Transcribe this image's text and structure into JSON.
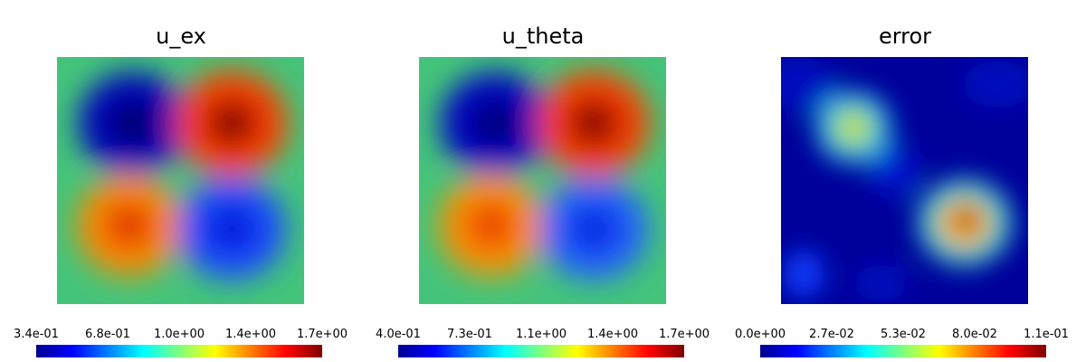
{
  "panels": [
    {
      "title": "u_ex",
      "colorbar_ticks": [
        "3.4e-01",
        "6.8e-01",
        "1.0e+00",
        "1.4e+00",
        "1.7e+00"
      ],
      "colormap": "jet"
    },
    {
      "title": "u_theta",
      "colorbar_ticks": [
        "4.0e-01",
        "7.3e-01",
        "1.1e+00",
        "1.4e+00",
        "1.7e+00"
      ],
      "colormap": "jet"
    },
    {
      "title": "error",
      "colorbar_ticks": [
        "0.0e+00",
        "2.7e-02",
        "5.3e-02",
        "8.0e-02",
        "1.1e-01"
      ],
      "colormap": "jet"
    }
  ],
  "chart_data": [
    {
      "type": "heatmap",
      "title": "u_ex",
      "colormap": "jet",
      "value_range": [
        0.34,
        1.7
      ],
      "blobs": [
        {
          "quadrant": "top-left",
          "kind": "minimum",
          "value": 0.34
        },
        {
          "quadrant": "top-right",
          "kind": "maximum",
          "value": 1.7
        },
        {
          "quadrant": "bottom-left",
          "kind": "maximum",
          "value": 1.55
        },
        {
          "quadrant": "bottom-right",
          "kind": "minimum",
          "value": 0.5
        }
      ]
    },
    {
      "type": "heatmap",
      "title": "u_theta",
      "colormap": "jet",
      "value_range": [
        0.4,
        1.7
      ],
      "blobs": [
        {
          "quadrant": "top-left",
          "kind": "minimum",
          "value": 0.4
        },
        {
          "quadrant": "top-right",
          "kind": "maximum",
          "value": 1.7
        },
        {
          "quadrant": "bottom-left",
          "kind": "maximum",
          "value": 1.55
        },
        {
          "quadrant": "bottom-right",
          "kind": "minimum",
          "value": 0.55
        }
      ]
    },
    {
      "type": "heatmap",
      "title": "error",
      "colormap": "jet",
      "value_range": [
        0.0,
        0.11
      ],
      "blobs": [
        {
          "quadrant": "upper-left",
          "kind": "maximum",
          "value": 0.065
        },
        {
          "quadrant": "lower-right",
          "kind": "maximum",
          "value": 0.11
        }
      ]
    }
  ]
}
